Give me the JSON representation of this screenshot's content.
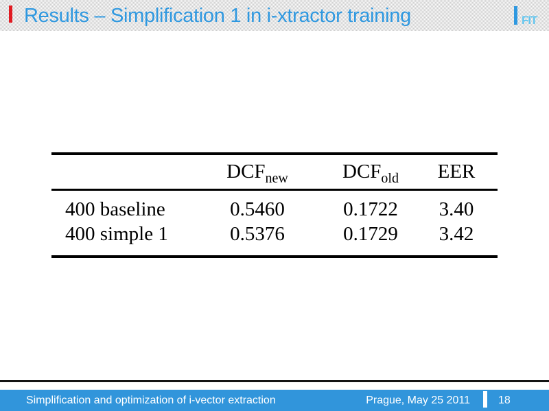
{
  "header": {
    "title": "Results – Simplification 1 in i-xtractor training",
    "logo_text": "FIT"
  },
  "table": {
    "header": {
      "col1": "",
      "col2_base": "DCF",
      "col2_sub": "new",
      "col3_base": "DCF",
      "col3_sub": "old",
      "col4": "EER"
    },
    "rows": [
      {
        "label": "400 baseline",
        "dcf_new": "0.5460",
        "dcf_old": "0.1722",
        "eer": "3.40"
      },
      {
        "label": "400 simple 1",
        "dcf_new": "0.5376",
        "dcf_old": "0.1729",
        "eer": "3.42"
      }
    ]
  },
  "footer": {
    "left": "Simplification and optimization of i-vector extraction",
    "date": "Prague, May 25 2011",
    "page": "18"
  },
  "colors": {
    "title_blue": "#2e98e0",
    "footer_blue": "#3195db",
    "accent_red": "#e11b22",
    "logo_light_blue": "#63c6ef",
    "pattern_gray": "#cbcbcb",
    "rule_black": "#000000"
  }
}
